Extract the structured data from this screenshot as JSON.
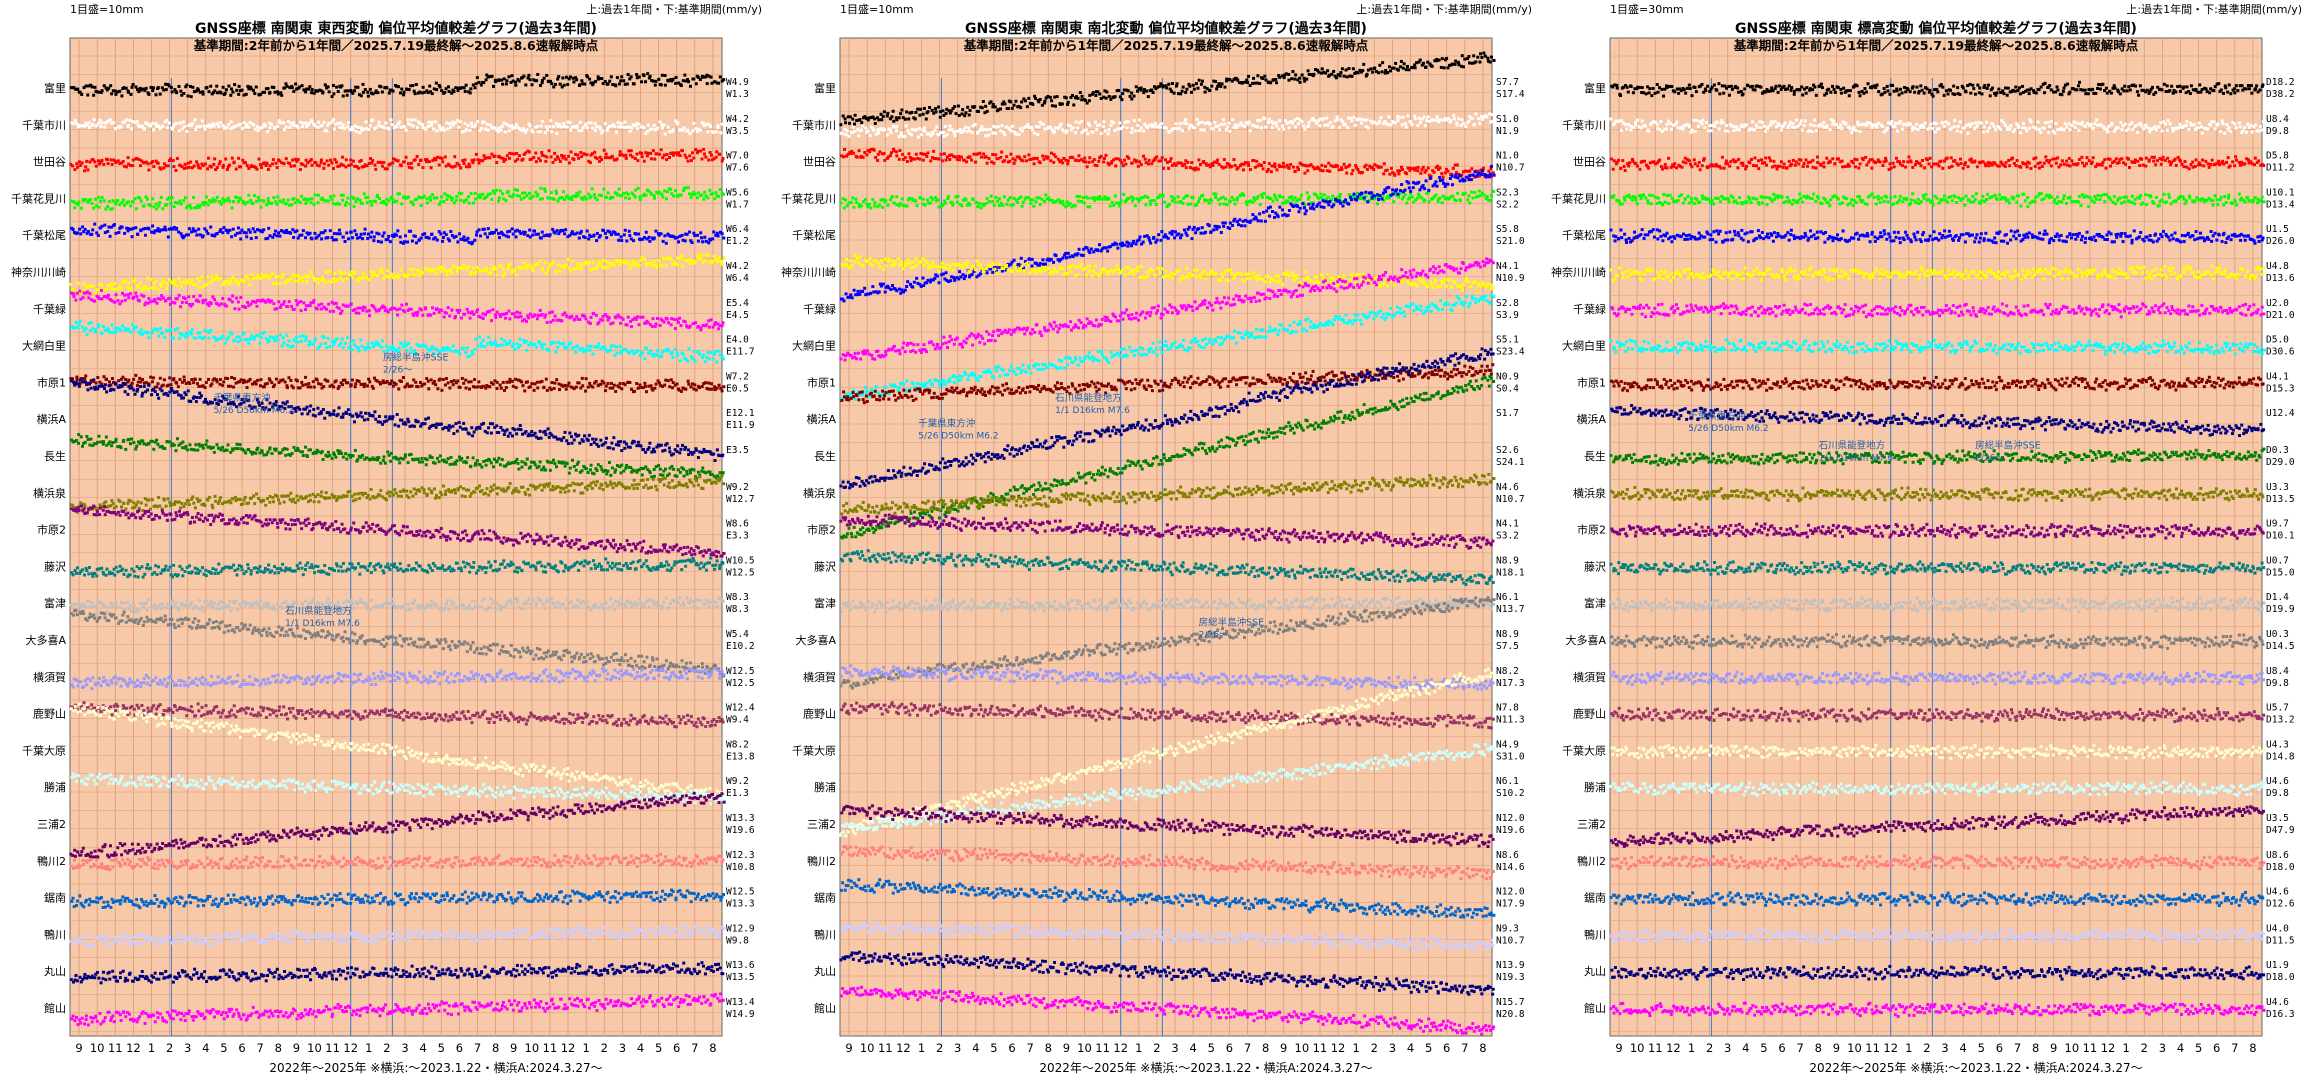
{
  "page": {
    "background": "#ffffff",
    "plot_bg": "#F8C9A8",
    "grid_color": "#D89A78"
  },
  "months": [
    "9",
    "10",
    "11",
    "12",
    "1",
    "2",
    "3",
    "4",
    "5",
    "6",
    "7",
    "8",
    "9",
    "10",
    "11",
    "12",
    "1",
    "2",
    "3",
    "4",
    "5",
    "6",
    "7",
    "8",
    "9",
    "10",
    "11",
    "12",
    "1",
    "2",
    "3",
    "4",
    "5",
    "6",
    "7",
    "8"
  ],
  "stations": [
    "富里",
    "千葉市川",
    "世田谷",
    "千葉花見川",
    "千葉松尾",
    "神奈川川崎",
    "千葉緑",
    "大網白里",
    "市原1",
    "横浜A",
    "長生",
    "横浜泉",
    "市原2",
    "藤沢",
    "富津",
    "大多喜A",
    "横須賀",
    "鹿野山",
    "千葉大原",
    "勝浦",
    "三浦2",
    "鴨川2",
    "鋸南",
    "鴨川",
    "丸山",
    "館山"
  ],
  "colors": [
    "#000000",
    "#FFFFFF",
    "#FF0000",
    "#00FF00",
    "#0000FF",
    "#FFFF00",
    "#FF00FF",
    "#00FFFF",
    "#800000",
    "#000080",
    "#008000",
    "#808000",
    "#800080",
    "#008080",
    "#C0C0C0",
    "#808080",
    "#9999FF",
    "#993366",
    "#FFFFCC",
    "#CCFFFF",
    "#660066",
    "#FF8080",
    "#0066CC",
    "#CCCCFF",
    "#000080",
    "#FF00FF"
  ],
  "chart_data": [
    {
      "type": "scatter",
      "title": "GNSS座標 南関東 東西変動 偏位平均値較差グラフ(過去3年間)",
      "subtitle": "基準期間:2年前から1年間／2025.7.19最終解～2025.8.6速報解時点",
      "scale_label": "1目盛=10mm",
      "period_label": "上:過去1年間・下:基準期間(mm/y)",
      "bottom_label": "2022年～2025年 ※横浜:～2023.1.22・横浜A:2024.3.27～",
      "rates": [
        [
          "W4.9",
          "W1.3"
        ],
        [
          "W4.2",
          "W3.5"
        ],
        [
          "W7.0",
          "W7.6"
        ],
        [
          "W5.6",
          "W1.7"
        ],
        [
          "W6.4",
          "E1.2"
        ],
        [
          "W4.2",
          "W6.4"
        ],
        [
          "E5.4",
          "E4.5"
        ],
        [
          "E4.0",
          "E11.7"
        ],
        [
          "W7.2",
          "E0.5"
        ],
        [
          "E12.1",
          "E11.9"
        ],
        [
          "E3.5",
          ""
        ],
        [
          "W9.2",
          "W12.7"
        ],
        [
          "W8.6",
          "E3.3"
        ],
        [
          "W10.5",
          "W12.5"
        ],
        [
          "W8.3",
          "W8.3"
        ],
        [
          "W5.4",
          "E10.2"
        ],
        [
          "W12.5",
          "W12.5"
        ],
        [
          "W12.4",
          "W9.4"
        ],
        [
          "W8.2",
          "E13.8"
        ],
        [
          "W9.2",
          "E1.3"
        ],
        [
          "W13.3",
          "W19.6"
        ],
        [
          "W12.3",
          "W10.8"
        ],
        [
          "W12.5",
          "W13.3"
        ],
        [
          "W12.9",
          "W9.8"
        ],
        [
          "W13.6",
          "W13.5"
        ],
        [
          "W13.4",
          "W14.9"
        ]
      ],
      "slopes": [
        0.2,
        -0.2,
        0.2,
        0.5,
        -0.9,
        1.8,
        -1.9,
        -2.5,
        -0.3,
        -4.8,
        -2.2,
        1.6,
        -2.7,
        0.5,
        0.2,
        -3.5,
        0.6,
        -0.9,
        -5.5,
        -1.2,
        3.6,
        0.3,
        0.4,
        0.6,
        0.6,
        1.2
      ],
      "late_offsets": [
        -8,
        0,
        -6,
        -3,
        -6,
        0,
        0,
        -10,
        0,
        -3,
        0,
        0,
        0,
        0,
        0,
        0,
        0,
        0,
        0,
        0,
        0,
        0,
        0,
        0,
        0,
        0
      ],
      "late_start": [
        0,
        0,
        0,
        0,
        0,
        0,
        0,
        0,
        0,
        0.44,
        0,
        0,
        0,
        0,
        0,
        0,
        0,
        0,
        0,
        0,
        0,
        0,
        0,
        0,
        0,
        0
      ],
      "early_end": [
        1,
        1,
        1,
        1,
        1,
        1,
        1,
        0.03,
        1,
        1,
        1,
        1,
        1,
        1,
        1,
        1,
        1,
        1,
        1,
        1,
        1,
        1,
        1,
        1,
        1,
        1
      ],
      "annotations": [
        {
          "text": "房総半島沖SSE",
          "sub": "2/26～",
          "x": 0.48,
          "row": 7.4
        },
        {
          "text": "千葉県東方沖",
          "sub": "5/26 D50km M6.2",
          "x": 0.22,
          "row": 8.5
        },
        {
          "text": "石川県能登地方",
          "sub": "1/1 D16km M7.6",
          "x": 0.33,
          "row": 14.3
        }
      ]
    },
    {
      "type": "scatter",
      "title": "GNSS座標 南関東 南北変動 偏位平均値較差グラフ(過去3年間)",
      "subtitle": "基準期間:2年前から1年間／2025.7.19最終解～2025.8.6速報解時点",
      "scale_label": "1目盛=10mm",
      "period_label": "上:過去1年間・下:基準期間(mm/y)",
      "bottom_label": "2022年～2025年 ※横浜:～2023.1.22・横浜A:2024.3.27～",
      "rates": [
        [
          "S7.7",
          "S17.4"
        ],
        [
          "S1.0",
          "N1.9"
        ],
        [
          "N1.0",
          "N10.7"
        ],
        [
          "S2.3",
          "S2.2"
        ],
        [
          "S5.8",
          "S21.0"
        ],
        [
          "N4.1",
          "N10.9"
        ],
        [
          "S2.8",
          "S3.9"
        ],
        [
          "S5.1",
          "S23.4"
        ],
        [
          "N0.9",
          "S0.4"
        ],
        [
          "S1.7",
          ""
        ],
        [
          "S2.6",
          "S24.1"
        ],
        [
          "N4.6",
          "N10.7"
        ],
        [
          "N4.1",
          "S3.2"
        ],
        [
          "N8.9",
          "N18.1"
        ],
        [
          "N6.1",
          "N13.7"
        ],
        [
          "N8.9",
          "S7.5"
        ],
        [
          "N8.2",
          "N17.3"
        ],
        [
          "N7.8",
          "N11.3"
        ],
        [
          "N4.9",
          "S31.0"
        ],
        [
          "N6.1",
          "S10.2"
        ],
        [
          "N12.0",
          "N19.6"
        ],
        [
          "N8.6",
          "N14.6"
        ],
        [
          "N12.0",
          "N17.9"
        ],
        [
          "N9.3",
          "N10.7"
        ],
        [
          "N13.9",
          "N19.3"
        ],
        [
          "N15.7",
          "N20.8"
        ]
      ],
      "slopes": [
        4.0,
        0.8,
        -1.2,
        0.4,
        7.6,
        -1.5,
        6.0,
        6.2,
        1.6,
        8.0,
        9.6,
        1.9,
        -1.5,
        -1.5,
        0.2,
        5.2,
        -0.8,
        -0.9,
        10.0,
        5.0,
        -1.9,
        -1.5,
        -1.8,
        -1.2,
        -2.2,
        -2.5
      ],
      "late_offsets": [
        0,
        0,
        0,
        0,
        -4,
        0,
        0,
        0,
        0,
        -5,
        0,
        0,
        0,
        0,
        0,
        0,
        0,
        0,
        0,
        0,
        0,
        0,
        0,
        0,
        0,
        0
      ],
      "late_start": [
        0,
        0,
        0,
        0,
        0,
        0,
        0,
        0,
        0,
        0,
        0,
        0,
        0,
        0,
        0,
        0,
        0,
        0,
        0,
        0,
        0,
        0,
        0,
        0,
        0,
        0
      ],
      "early_end": [
        1,
        1,
        1,
        1,
        1,
        1,
        1,
        1,
        1,
        1,
        1,
        1,
        1,
        1,
        1,
        1,
        1,
        1,
        1,
        1,
        1,
        1,
        1,
        1,
        1,
        1
      ],
      "annotations": [
        {
          "text": "千葉県東方沖",
          "sub": "5/26 D50km M6.2",
          "x": 0.12,
          "row": 9.2
        },
        {
          "text": "石川県能登地方",
          "sub": "1/1 D16km M7.6",
          "x": 0.33,
          "row": 8.5
        },
        {
          "text": "房総半島沖SSE",
          "sub": "2/26～",
          "x": 0.55,
          "row": 14.6
        }
      ]
    },
    {
      "type": "scatter",
      "title": "GNSS座標 南関東 標高変動 偏位平均値較差グラフ(過去3年間)",
      "subtitle": "基準期間:2年前から1年間／2025.7.19最終解～2025.8.6速報解時点",
      "scale_label": "1目盛=30mm",
      "period_label": "上:過去1年間・下:基準期間(mm/y)",
      "bottom_label": "2022年～2025年 ※横浜:～2023.1.22・横浜A:2024.3.27～",
      "rates": [
        [
          "D18.2",
          "D38.2"
        ],
        [
          "U8.4",
          "D9.8"
        ],
        [
          "D5.8",
          "D11.2"
        ],
        [
          "U10.1",
          "D13.4"
        ],
        [
          "U1.5",
          "D26.0"
        ],
        [
          "U4.8",
          "D13.6"
        ],
        [
          "U2.0",
          "D21.0"
        ],
        [
          "D5.0",
          "D30.6"
        ],
        [
          "U4.1",
          "D15.3"
        ],
        [
          "U12.4",
          ""
        ],
        [
          "D0.3",
          "D29.0"
        ],
        [
          "U3.3",
          "D13.5"
        ],
        [
          "U9.7",
          "D10.1"
        ],
        [
          "U0.7",
          "D15.0"
        ],
        [
          "D1.4",
          "D19.9"
        ],
        [
          "U0.3",
          "D14.5"
        ],
        [
          "U8.4",
          "D9.8"
        ],
        [
          "U5.7",
          "D13.2"
        ],
        [
          "U4.3",
          "D14.8"
        ],
        [
          "U4.6",
          "D9.8"
        ],
        [
          "U3.5",
          "D47.9"
        ],
        [
          "U8.6",
          "D18.0"
        ],
        [
          "U4.6",
          "D12.6"
        ],
        [
          "U4.0",
          "D11.5"
        ],
        [
          "U1.9",
          "D18.0"
        ],
        [
          "U4.6",
          "D16.3"
        ]
      ],
      "slopes": [
        0.1,
        -0.1,
        0.1,
        0.0,
        -0.1,
        0.1,
        0.0,
        -0.1,
        0.1,
        -1.2,
        0.3,
        0.0,
        -0.1,
        0.0,
        0.0,
        0.0,
        0.0,
        0.0,
        0.0,
        0.0,
        2.0,
        0.0,
        0.0,
        0.0,
        0.0,
        0.0
      ],
      "late_offsets": [
        0,
        0,
        0,
        0,
        0,
        0,
        0,
        0,
        0,
        0,
        0,
        0,
        0,
        0,
        0,
        0,
        0,
        0,
        0,
        0,
        0,
        0,
        0,
        0,
        0,
        0
      ],
      "late_start": [
        0,
        0,
        0,
        0,
        0,
        0,
        0,
        0,
        0,
        0.53,
        0,
        0,
        0,
        0,
        0,
        0,
        0,
        0,
        0,
        0,
        0,
        0,
        0,
        0,
        0,
        0
      ],
      "early_end": [
        1,
        1,
        1,
        1,
        1,
        1,
        1,
        0.08,
        1,
        1,
        1,
        1,
        1,
        1,
        1,
        1,
        1,
        1,
        1,
        1,
        1,
        1,
        1,
        1,
        1,
        1
      ],
      "annotations": [
        {
          "text": "千葉県東方沖",
          "sub": "5/26 D50km M6.2",
          "x": 0.12,
          "row": 9.0
        },
        {
          "text": "石川県能登地方",
          "sub": "1/1 D16km M7.6",
          "x": 0.32,
          "row": 9.8
        },
        {
          "text": "房総半島沖SSE",
          "sub": "2/26～",
          "x": 0.56,
          "row": 9.8
        }
      ]
    }
  ]
}
